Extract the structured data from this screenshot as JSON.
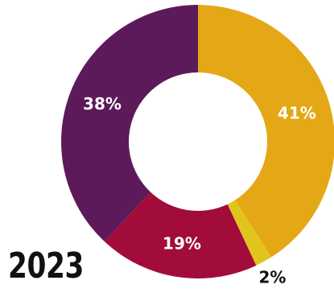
{
  "chart_data": {
    "type": "pie",
    "variant": "donut",
    "title": "2023",
    "slices": [
      {
        "label": "41%",
        "value": 41,
        "color": "#E4A817",
        "label_color": "#ffffff",
        "label_inside": true
      },
      {
        "label": "2%",
        "value": 2,
        "color": "#E2C51C",
        "label_color": "#111111",
        "label_inside": false
      },
      {
        "label": "19%",
        "value": 19,
        "color": "#A20C3A",
        "label_color": "#ffffff",
        "label_inside": true
      },
      {
        "label": "38%",
        "value": 38,
        "color": "#5C1A5A",
        "label_color": "#ffffff",
        "label_inside": true
      }
    ],
    "start": "12 o'clock",
    "direction": "clockwise",
    "legend": "none"
  }
}
